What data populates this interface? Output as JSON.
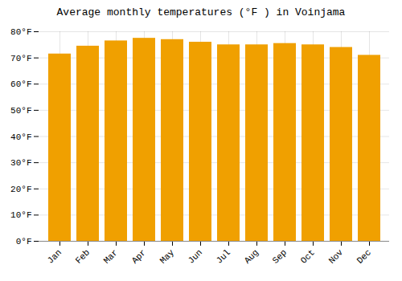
{
  "chart_data": {
    "type": "bar",
    "title": "Average monthly temperatures (°F ) in Voinjama",
    "categories": [
      "Jan",
      "Feb",
      "Mar",
      "Apr",
      "May",
      "Jun",
      "Jul",
      "Aug",
      "Sep",
      "Oct",
      "Nov",
      "Dec"
    ],
    "values": [
      71.5,
      74.5,
      76.5,
      77.5,
      77.0,
      76.0,
      75.0,
      75.0,
      75.5,
      75.0,
      74.0,
      71.0
    ],
    "color": "#F0A000",
    "ylim": [
      0,
      80
    ],
    "yticks": [
      {
        "value": 0,
        "label": "0°F"
      },
      {
        "value": 10,
        "label": "10°F"
      },
      {
        "value": 20,
        "label": "20°F"
      },
      {
        "value": 30,
        "label": "30°F"
      },
      {
        "value": 40,
        "label": "40°F"
      },
      {
        "value": 50,
        "label": "50°F"
      },
      {
        "value": 60,
        "label": "60°F"
      },
      {
        "value": 70,
        "label": "70°F"
      },
      {
        "value": 80,
        "label": "80°F"
      }
    ],
    "grid": true
  }
}
